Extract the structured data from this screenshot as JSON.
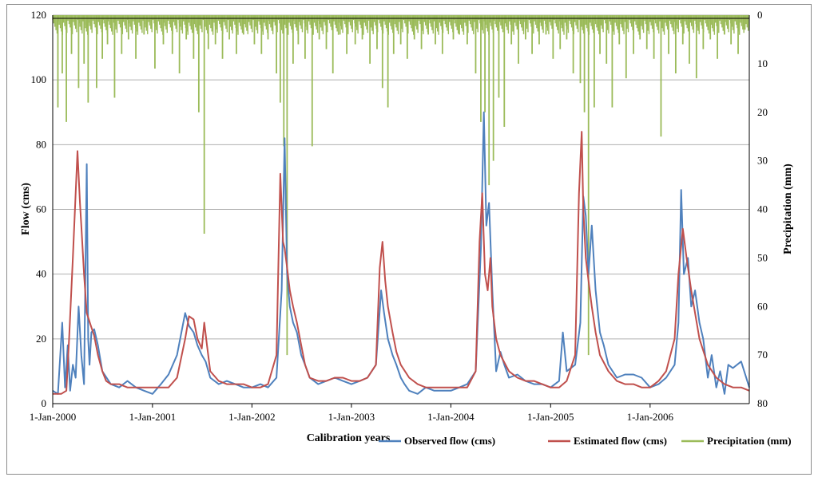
{
  "chart_data": {
    "type": "line",
    "title": "",
    "xlabel": "Calibration years",
    "ylabel": "Flow (cms)",
    "y2label": "Precipitation (mm)",
    "ylim": [
      0,
      120
    ],
    "y2lim": [
      80,
      0
    ],
    "y_ticks": [
      "0",
      "20",
      "40",
      "60",
      "80",
      "100",
      "120"
    ],
    "y2_ticks": [
      "0",
      "10",
      "20",
      "30",
      "40",
      "50",
      "60",
      "70",
      "80"
    ],
    "x_range": [
      "2000-01-01",
      "2006-12-31"
    ],
    "x_ticks": [
      {
        "date": "2000-01-01",
        "label": "1-Jan-2000"
      },
      {
        "date": "2001-01-01",
        "label": "1-Jan-2001"
      },
      {
        "date": "2002-01-01",
        "label": "1-Jan-2002"
      },
      {
        "date": "2003-01-01",
        "label": "1-Jan-2003"
      },
      {
        "date": "2004-01-01",
        "label": "1-Jan-2004"
      },
      {
        "date": "2005-01-01",
        "label": "1-Jan-2005"
      },
      {
        "date": "2006-01-01",
        "label": "1-Jan-2006"
      }
    ],
    "grid": true,
    "legend_position": "bottom-right",
    "series": [
      {
        "name": "Observed flow (cms)",
        "color": "#4f81bd",
        "axis": "left",
        "x": [
          "2000-01-01",
          "2000-01-20",
          "2000-02-05",
          "2000-02-15",
          "2000-02-25",
          "2000-03-05",
          "2000-03-15",
          "2000-03-25",
          "2000-04-05",
          "2000-04-15",
          "2000-04-25",
          "2000-05-05",
          "2000-05-10",
          "2000-05-15",
          "2000-05-22",
          "2000-06-01",
          "2000-06-15",
          "2000-07-01",
          "2000-08-01",
          "2000-09-01",
          "2000-10-01",
          "2000-11-01",
          "2000-12-01",
          "2001-01-01",
          "2001-02-01",
          "2001-03-01",
          "2001-04-01",
          "2001-05-01",
          "2001-05-15",
          "2001-06-01",
          "2001-06-15",
          "2001-07-01",
          "2001-07-15",
          "2001-08-01",
          "2001-09-01",
          "2001-10-01",
          "2001-11-01",
          "2001-12-01",
          "2002-01-01",
          "2002-02-01",
          "2002-03-01",
          "2002-04-01",
          "2002-04-20",
          "2002-05-01",
          "2002-05-10",
          "2002-05-20",
          "2002-06-01",
          "2002-06-15",
          "2002-07-01",
          "2002-07-15",
          "2002-08-01",
          "2002-09-01",
          "2002-10-01",
          "2002-11-01",
          "2002-12-01",
          "2003-01-01",
          "2003-02-01",
          "2003-03-01",
          "2003-04-01",
          "2003-04-20",
          "2003-05-01",
          "2003-05-15",
          "2003-06-01",
          "2003-06-15",
          "2003-07-01",
          "2003-07-15",
          "2003-08-01",
          "2003-09-01",
          "2003-10-01",
          "2003-11-01",
          "2003-12-01",
          "2004-01-01",
          "2004-02-01",
          "2004-03-01",
          "2004-04-01",
          "2004-04-20",
          "2004-05-01",
          "2004-05-10",
          "2004-05-20",
          "2004-06-01",
          "2004-06-15",
          "2004-07-01",
          "2004-07-15",
          "2004-08-01",
          "2004-09-01",
          "2004-10-01",
          "2004-11-01",
          "2004-12-01",
          "2005-01-01",
          "2005-02-01",
          "2005-02-15",
          "2005-03-01",
          "2005-04-01",
          "2005-04-20",
          "2005-05-01",
          "2005-05-10",
          "2005-05-20",
          "2005-06-01",
          "2005-06-15",
          "2005-07-01",
          "2005-07-15",
          "2005-08-01",
          "2005-09-01",
          "2005-10-01",
          "2005-11-01",
          "2005-12-01",
          "2006-01-01",
          "2006-02-01",
          "2006-03-01",
          "2006-04-01",
          "2006-04-15",
          "2006-04-25",
          "2006-05-05",
          "2006-05-20",
          "2006-06-01",
          "2006-06-15",
          "2006-07-01",
          "2006-07-15",
          "2006-08-01",
          "2006-08-15",
          "2006-09-01",
          "2006-09-15",
          "2006-10-01",
          "2006-10-15",
          "2006-11-01",
          "2006-12-01",
          "2006-12-31"
        ],
        "values": [
          4,
          3,
          25,
          5,
          18,
          4,
          12,
          8,
          30,
          15,
          6,
          74,
          20,
          12,
          22,
          23,
          18,
          10,
          6,
          5,
          7,
          5,
          4,
          3,
          6,
          9,
          15,
          28,
          24,
          22,
          18,
          15,
          13,
          8,
          6,
          7,
          6,
          5,
          5,
          6,
          5,
          8,
          35,
          82,
          40,
          30,
          25,
          22,
          15,
          12,
          8,
          6,
          7,
          8,
          7,
          6,
          7,
          8,
          12,
          35,
          28,
          20,
          15,
          12,
          8,
          6,
          4,
          3,
          5,
          4,
          4,
          4,
          5,
          6,
          10,
          48,
          90,
          55,
          62,
          35,
          10,
          16,
          12,
          8,
          9,
          7,
          6,
          6,
          5,
          7,
          22,
          10,
          12,
          25,
          64,
          58,
          40,
          55,
          35,
          22,
          18,
          12,
          8,
          9,
          9,
          8,
          5,
          6,
          8,
          12,
          25,
          66,
          40,
          45,
          30,
          35,
          25,
          20,
          8,
          15,
          5,
          10,
          3,
          12,
          11,
          13,
          5
        ]
      },
      {
        "name": "Estimated flow (cms)",
        "color": "#c0504d",
        "axis": "left",
        "x": [
          "2000-01-01",
          "2000-02-01",
          "2000-02-20",
          "2000-03-01",
          "2000-03-15",
          "2000-04-01",
          "2000-04-10",
          "2000-04-15",
          "2000-04-25",
          "2000-05-05",
          "2000-05-20",
          "2000-06-01",
          "2000-06-15",
          "2000-07-01",
          "2000-07-15",
          "2000-08-01",
          "2000-09-01",
          "2000-10-01",
          "2000-11-01",
          "2000-12-01",
          "2001-01-01",
          "2001-02-01",
          "2001-03-01",
          "2001-04-01",
          "2001-05-01",
          "2001-05-15",
          "2001-06-01",
          "2001-06-15",
          "2001-07-01",
          "2001-07-10",
          "2001-07-20",
          "2001-08-01",
          "2001-09-01",
          "2001-10-01",
          "2001-11-01",
          "2001-12-01",
          "2002-01-01",
          "2002-02-01",
          "2002-03-01",
          "2002-04-01",
          "2002-04-15",
          "2002-04-25",
          "2002-05-01",
          "2002-05-10",
          "2002-05-20",
          "2002-06-01",
          "2002-06-15",
          "2002-07-01",
          "2002-07-15",
          "2002-08-01",
          "2002-09-01",
          "2002-10-01",
          "2002-11-01",
          "2002-12-01",
          "2003-01-01",
          "2003-02-01",
          "2003-03-01",
          "2003-04-01",
          "2003-04-15",
          "2003-04-25",
          "2003-05-05",
          "2003-05-15",
          "2003-06-01",
          "2003-06-15",
          "2003-07-01",
          "2003-08-01",
          "2003-09-01",
          "2003-10-01",
          "2003-11-01",
          "2003-12-01",
          "2004-01-01",
          "2004-02-01",
          "2004-03-01",
          "2004-04-01",
          "2004-04-15",
          "2004-04-25",
          "2004-05-05",
          "2004-05-15",
          "2004-05-25",
          "2004-06-01",
          "2004-06-15",
          "2004-07-01",
          "2004-08-01",
          "2004-09-01",
          "2004-10-01",
          "2004-11-01",
          "2004-12-01",
          "2005-01-01",
          "2005-02-01",
          "2005-03-01",
          "2005-04-01",
          "2005-04-15",
          "2005-04-25",
          "2005-05-01",
          "2005-05-10",
          "2005-05-20",
          "2005-06-01",
          "2005-06-15",
          "2005-07-01",
          "2005-08-01",
          "2005-09-01",
          "2005-10-01",
          "2005-11-01",
          "2005-12-01",
          "2006-01-01",
          "2006-02-01",
          "2006-03-01",
          "2006-04-01",
          "2006-04-15",
          "2006-05-01",
          "2006-05-15",
          "2006-06-01",
          "2006-06-15",
          "2006-07-01",
          "2006-08-01",
          "2006-09-01",
          "2006-10-01",
          "2006-11-01",
          "2006-12-01",
          "2006-12-31"
        ],
        "values": [
          3,
          3,
          4,
          20,
          45,
          78,
          62,
          55,
          40,
          28,
          24,
          21,
          15,
          10,
          7,
          6,
          6,
          5,
          5,
          5,
          5,
          5,
          5,
          8,
          20,
          27,
          26,
          20,
          17,
          25,
          18,
          10,
          7,
          6,
          6,
          6,
          5,
          5,
          6,
          15,
          71,
          50,
          48,
          42,
          35,
          30,
          25,
          18,
          12,
          8,
          7,
          7,
          8,
          8,
          7,
          7,
          8,
          12,
          42,
          50,
          38,
          30,
          22,
          16,
          12,
          8,
          6,
          5,
          5,
          5,
          5,
          5,
          5,
          10,
          50,
          65,
          40,
          35,
          45,
          30,
          20,
          15,
          10,
          8,
          7,
          7,
          6,
          5,
          5,
          7,
          15,
          65,
          84,
          60,
          45,
          38,
          30,
          22,
          15,
          10,
          7,
          6,
          6,
          5,
          5,
          7,
          10,
          20,
          40,
          54,
          45,
          35,
          28,
          20,
          12,
          8,
          6,
          5,
          5,
          4
        ]
      },
      {
        "name": "Precipitation (mm)",
        "color": "#9bbb59",
        "axis": "right",
        "style": "bars-from-top",
        "x": [
          "2000-01-20",
          "2000-02-05",
          "2000-02-20",
          "2000-03-10",
          "2000-04-05",
          "2000-04-25",
          "2000-05-10",
          "2000-06-10",
          "2000-07-01",
          "2000-07-20",
          "2000-08-15",
          "2000-09-10",
          "2000-10-05",
          "2000-11-01",
          "2000-12-01",
          "2001-01-10",
          "2001-02-10",
          "2001-03-15",
          "2001-04-10",
          "2001-05-05",
          "2001-06-01",
          "2001-06-20",
          "2001-07-10",
          "2001-07-25",
          "2001-08-20",
          "2001-09-15",
          "2001-10-10",
          "2001-11-05",
          "2001-12-01",
          "2002-01-10",
          "2002-02-05",
          "2002-03-01",
          "2002-04-01",
          "2002-04-15",
          "2002-04-28",
          "2002-05-10",
          "2002-06-01",
          "2002-06-20",
          "2002-07-15",
          "2002-08-10",
          "2002-09-05",
          "2002-10-01",
          "2002-10-25",
          "2002-11-20",
          "2002-12-15",
          "2003-01-15",
          "2003-02-10",
          "2003-03-10",
          "2003-04-05",
          "2003-04-25",
          "2003-05-15",
          "2003-06-05",
          "2003-07-01",
          "2003-07-25",
          "2003-08-20",
          "2003-09-15",
          "2003-10-10",
          "2003-11-05",
          "2003-12-01",
          "2004-01-10",
          "2004-02-01",
          "2004-03-01",
          "2004-04-01",
          "2004-04-20",
          "2004-05-05",
          "2004-05-20",
          "2004-06-05",
          "2004-06-25",
          "2004-07-15",
          "2004-08-10",
          "2004-09-05",
          "2004-10-01",
          "2004-10-25",
          "2004-11-20",
          "2004-12-15",
          "2005-01-10",
          "2005-02-05",
          "2005-03-01",
          "2005-03-25",
          "2005-04-20",
          "2005-05-05",
          "2005-05-20",
          "2005-06-10",
          "2005-07-01",
          "2005-07-25",
          "2005-08-15",
          "2005-09-10",
          "2005-10-05",
          "2005-11-01",
          "2005-11-25",
          "2005-12-20",
          "2006-01-15",
          "2006-02-10",
          "2006-03-10",
          "2006-04-05",
          "2006-05-01",
          "2006-05-25",
          "2006-06-20",
          "2006-07-15",
          "2006-08-10",
          "2006-09-05",
          "2006-10-01",
          "2006-10-25",
          "2006-11-20",
          "2006-12-15"
        ],
        "values": [
          19,
          12,
          22,
          8,
          15,
          10,
          18,
          15,
          9,
          6,
          17,
          8,
          5,
          9,
          4,
          11,
          6,
          8,
          12,
          5,
          9,
          20,
          45,
          7,
          6,
          9,
          5,
          8,
          4,
          6,
          8,
          5,
          12,
          18,
          27,
          70,
          10,
          6,
          9,
          27,
          5,
          7,
          12,
          4,
          8,
          6,
          5,
          10,
          7,
          15,
          19,
          8,
          6,
          9,
          5,
          7,
          4,
          6,
          8,
          5,
          4,
          6,
          12,
          22,
          20,
          35,
          30,
          17,
          23,
          6,
          10,
          5,
          8,
          6,
          4,
          9,
          7,
          5,
          12,
          14,
          20,
          70,
          19,
          8,
          10,
          19,
          6,
          13,
          8,
          5,
          7,
          9,
          25,
          8,
          12,
          6,
          10,
          13,
          7,
          5,
          9,
          4,
          6,
          8,
          3
        ]
      }
    ]
  }
}
